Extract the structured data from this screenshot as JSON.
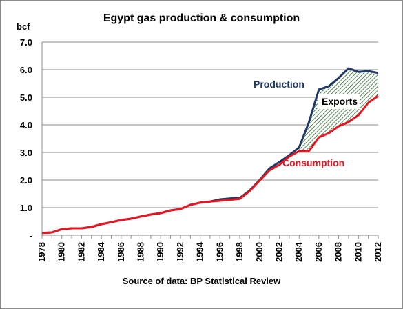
{
  "chart_data": {
    "type": "line",
    "title": "Egypt gas production & consumption",
    "ylabel": "bcf",
    "xlabel": "",
    "source": "Source of data: BP Statistical Review",
    "ylim": [
      0,
      7
    ],
    "y_tick_labels": [
      "-",
      "1.0",
      "2.0",
      "3.0",
      "4.0",
      "5.0",
      "6.0",
      "7.0"
    ],
    "x": [
      1978,
      1979,
      1980,
      1981,
      1982,
      1983,
      1984,
      1985,
      1986,
      1987,
      1988,
      1989,
      1990,
      1991,
      1992,
      1993,
      1994,
      1995,
      1996,
      1997,
      1998,
      1999,
      2000,
      2001,
      2002,
      2003,
      2004,
      2005,
      2006,
      2007,
      2008,
      2009,
      2010,
      2011,
      2012
    ],
    "x_tick_labels": [
      "1978",
      "1980",
      "1982",
      "1984",
      "1986",
      "1988",
      "1990",
      "1992",
      "1994",
      "1996",
      "1998",
      "2000",
      "2002",
      "2004",
      "2006",
      "2008",
      "2010",
      "2012"
    ],
    "grid": "horizontal",
    "series": [
      {
        "name": "Production",
        "color": "#1f3864",
        "values": [
          0.08,
          0.1,
          0.22,
          0.25,
          0.25,
          0.3,
          0.4,
          0.47,
          0.55,
          0.6,
          0.68,
          0.75,
          0.8,
          0.9,
          0.95,
          1.1,
          1.18,
          1.22,
          1.3,
          1.33,
          1.35,
          1.62,
          2.0,
          2.42,
          2.65,
          2.9,
          3.18,
          4.1,
          5.28,
          5.4,
          5.7,
          6.05,
          5.92,
          5.95,
          5.88
        ]
      },
      {
        "name": "Consumption",
        "color": "#e8141e",
        "values": [
          0.08,
          0.1,
          0.22,
          0.25,
          0.25,
          0.3,
          0.4,
          0.47,
          0.55,
          0.6,
          0.68,
          0.75,
          0.8,
          0.9,
          0.95,
          1.1,
          1.18,
          1.22,
          1.25,
          1.28,
          1.32,
          1.6,
          1.98,
          2.35,
          2.55,
          2.85,
          3.05,
          3.05,
          3.55,
          3.7,
          3.95,
          4.1,
          4.35,
          4.8,
          5.05
        ]
      }
    ],
    "annotations": {
      "production_label": "Production",
      "consumption_label": "Consumption",
      "exports_label": "Exports"
    },
    "exports_fill_color": "#2d6a2d"
  }
}
